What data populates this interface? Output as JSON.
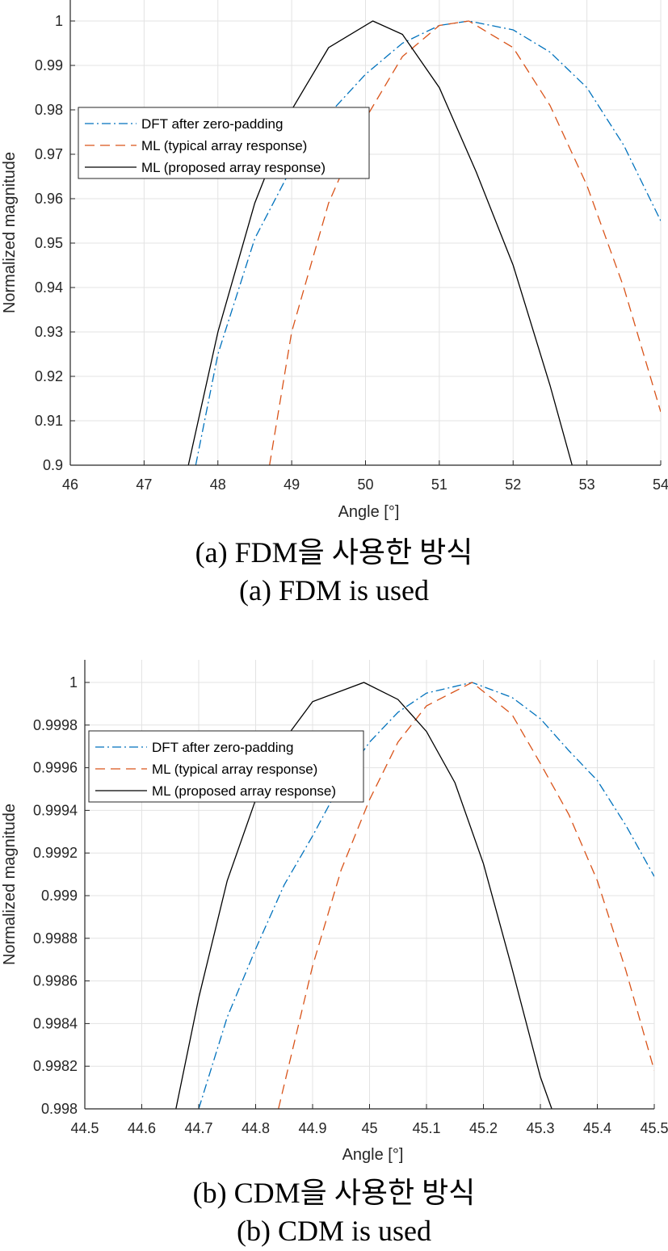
{
  "charts": [
    {
      "caption_ko": "(a) FDM을 사용한 방식",
      "caption_en": "(a) FDM is used"
    },
    {
      "caption_ko": "(b) CDM을 사용한 방식",
      "caption_en": "(b) CDM is used"
    }
  ],
  "chart_data": [
    {
      "type": "line",
      "xlabel": "Angle [°]",
      "ylabel": "Normalized magnitude",
      "xlim": [
        46,
        54
      ],
      "ylim": [
        0.9,
        1.0
      ],
      "xticks": [
        "46",
        "47",
        "48",
        "49",
        "50",
        "51",
        "52",
        "53",
        "54"
      ],
      "yticks": [
        "0.9",
        "0.91",
        "0.92",
        "0.93",
        "0.94",
        "0.95",
        "0.96",
        "0.97",
        "0.98",
        "0.99",
        "1"
      ],
      "grid": true,
      "legend_position": "upper-left",
      "series": [
        {
          "name": "DFT after zero-padding",
          "color": "#0072BD",
          "style": "dash-dot",
          "x": [
            47.7,
            48.0,
            48.5,
            49.0,
            49.5,
            50.0,
            50.5,
            51.0,
            51.4,
            52.0,
            52.5,
            53.0,
            53.5,
            54.0
          ],
          "y": [
            0.9,
            0.925,
            0.951,
            0.967,
            0.979,
            0.988,
            0.995,
            0.999,
            1.0,
            0.998,
            0.993,
            0.985,
            0.972,
            0.955
          ]
        },
        {
          "name": "ML (typical array response)",
          "color": "#D95319",
          "style": "dashed",
          "x": [
            48.7,
            49.0,
            49.5,
            50.0,
            50.5,
            51.0,
            51.4,
            52.0,
            52.5,
            53.0,
            53.5,
            54.0
          ],
          "y": [
            0.9,
            0.93,
            0.959,
            0.978,
            0.992,
            0.999,
            1.0,
            0.994,
            0.981,
            0.963,
            0.94,
            0.912
          ]
        },
        {
          "name": "ML (proposed array response)",
          "color": "#000000",
          "style": "solid",
          "x": [
            47.6,
            48.0,
            48.5,
            49.0,
            49.5,
            50.1,
            50.5,
            51.0,
            51.5,
            52.0,
            52.5,
            52.8
          ],
          "y": [
            0.9,
            0.93,
            0.959,
            0.98,
            0.994,
            1.0,
            0.997,
            0.985,
            0.966,
            0.945,
            0.918,
            0.9
          ]
        }
      ]
    },
    {
      "type": "line",
      "xlabel": "Angle [°]",
      "ylabel": "Normalized magnitude",
      "xlim": [
        44.5,
        45.5
      ],
      "ylim": [
        0.998,
        1.0
      ],
      "xticks": [
        "44.5",
        "44.6",
        "44.7",
        "44.8",
        "44.9",
        "45",
        "45.1",
        "45.2",
        "45.3",
        "45.4",
        "45.5"
      ],
      "yticks": [
        "0.998",
        "0.9982",
        "0.9984",
        "0.9986",
        "0.9988",
        "0.999",
        "0.9992",
        "0.9994",
        "0.9996",
        "0.9998",
        "1"
      ],
      "grid": true,
      "legend_position": "upper-left",
      "series": [
        {
          "name": "DFT after zero-padding",
          "color": "#0072BD",
          "style": "dash-dot",
          "x": [
            44.7,
            44.75,
            44.8,
            44.85,
            44.9,
            44.95,
            45.0,
            45.05,
            45.1,
            45.18,
            45.25,
            45.3,
            45.35,
            45.4,
            45.45,
            45.5
          ],
          "y": [
            0.998,
            0.99843,
            0.99875,
            0.99905,
            0.99928,
            0.99953,
            0.99972,
            0.99986,
            0.99995,
            1.0,
            0.99993,
            0.99983,
            0.99968,
            0.99954,
            0.99933,
            0.99909
          ]
        },
        {
          "name": "ML (typical array response)",
          "color": "#D95319",
          "style": "dashed",
          "x": [
            44.84,
            44.9,
            44.95,
            45.0,
            45.05,
            45.1,
            45.18,
            45.25,
            45.3,
            45.35,
            45.4,
            45.45,
            45.5
          ],
          "y": [
            0.998,
            0.99867,
            0.99912,
            0.99945,
            0.99972,
            0.99989,
            1.0,
            0.99985,
            0.99962,
            0.99938,
            0.99907,
            0.99865,
            0.99818
          ]
        },
        {
          "name": "ML (proposed array response)",
          "color": "#000000",
          "style": "solid",
          "x": [
            44.66,
            44.7,
            44.75,
            44.8,
            44.85,
            44.9,
            44.99,
            45.05,
            45.1,
            45.15,
            45.2,
            45.25,
            45.3,
            45.32
          ],
          "y": [
            0.998,
            0.99852,
            0.99907,
            0.99945,
            0.99973,
            0.99991,
            1.0,
            0.99992,
            0.99977,
            0.99953,
            0.99915,
            0.99866,
            0.99815,
            0.998
          ]
        }
      ]
    }
  ]
}
